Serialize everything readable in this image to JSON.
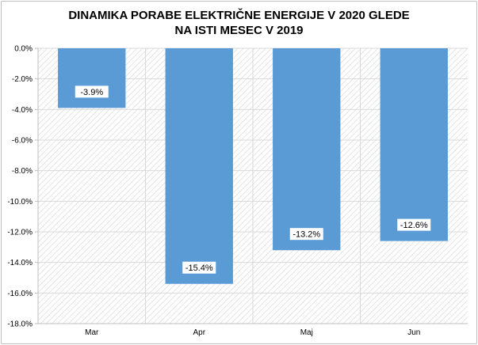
{
  "chart_data": {
    "type": "bar",
    "title_lines": [
      "DINAMIKA PORABE ELEKTRIČNE ENERGIJE V 2020 GLEDE",
      "NA ISTI MESEC V 2019"
    ],
    "categories": [
      "Mar",
      "Apr",
      "Maj",
      "Jun"
    ],
    "values": [
      -3.9,
      -15.4,
      -13.2,
      -12.6
    ],
    "data_labels": [
      "-3.9%",
      "-15.4%",
      "-13.2%",
      "-12.6%"
    ],
    "ylim": [
      -18,
      0
    ],
    "yticks": [
      0,
      -2,
      -4,
      -6,
      -8,
      -10,
      -12,
      -14,
      -16,
      -18
    ],
    "ytick_labels": [
      "0.0%",
      "-2.0%",
      "-4.0%",
      "-6.0%",
      "-8.0%",
      "-10.0%",
      "-12.0%",
      "-14.0%",
      "-16.0%",
      "-18.0%"
    ],
    "xlabel": "",
    "ylabel": "",
    "grid": true,
    "bar_color": "#5b9bd5",
    "background": "hatched"
  }
}
